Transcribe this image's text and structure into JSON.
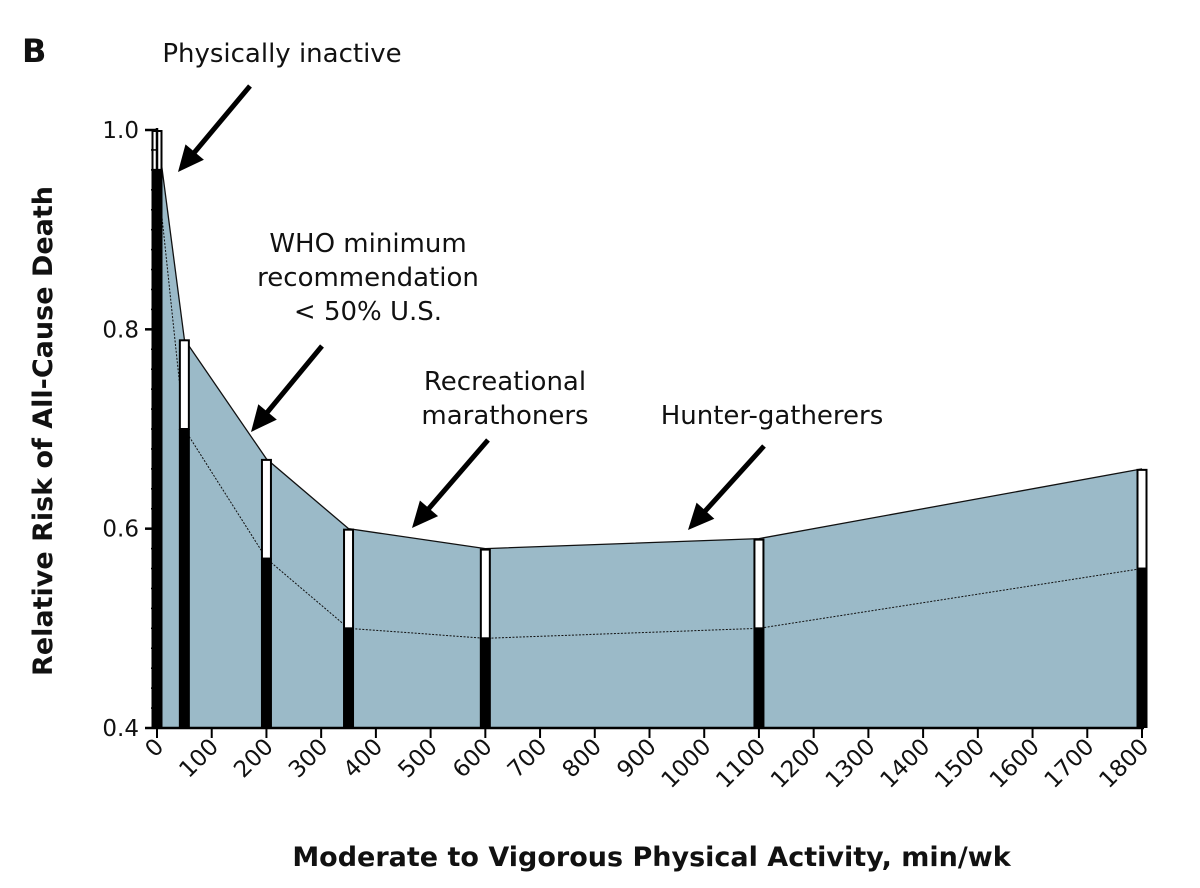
{
  "chart_data": {
    "type": "area",
    "panel_label": "B",
    "xlabel": "Moderate to Vigorous Physical Activity, min/wk",
    "ylabel": "Relative Risk of All-Cause Death",
    "xlim": [
      0,
      1800
    ],
    "ylim": [
      0.4,
      1.0
    ],
    "x_ticks": [
      0,
      100,
      200,
      300,
      400,
      500,
      600,
      700,
      800,
      900,
      1000,
      1100,
      1200,
      1300,
      1400,
      1500,
      1600,
      1700,
      1800
    ],
    "x_tick_labels": [
      "0",
      "100",
      "200",
      "300",
      "400",
      "500",
      "600",
      "700",
      "800",
      "900",
      "1000",
      "1100",
      "1200",
      "1300",
      "1400",
      "1500",
      "1600",
      "1700",
      "1800"
    ],
    "y_ticks": [
      0.4,
      0.6,
      0.8,
      1.0
    ],
    "y_tick_labels": [
      "0.4",
      "0.6",
      "0.8",
      "1.0"
    ],
    "grid": false,
    "band_color": "#9bbac8",
    "bar_color": "#000000",
    "x": [
      0,
      50,
      200,
      350,
      600,
      1100,
      1800
    ],
    "series": [
      {
        "name": "upper",
        "values": [
          1.0,
          0.79,
          0.67,
          0.6,
          0.58,
          0.59,
          0.66
        ]
      },
      {
        "name": "lower",
        "values": [
          0.96,
          0.7,
          0.57,
          0.5,
          0.49,
          0.5,
          0.56
        ]
      }
    ],
    "annotations": [
      {
        "lines": [
          "Physically inactive"
        ],
        "x": 40,
        "y": 0.96
      },
      {
        "lines": [
          "WHO minimum",
          "recommendation",
          "< 50% U.S."
        ],
        "x": 170,
        "y": 0.695
      },
      {
        "lines": [
          "Recreational",
          "marathoners"
        ],
        "x": 460,
        "y": 0.598
      },
      {
        "lines": [
          "Hunter-gatherers"
        ],
        "x": 970,
        "y": 0.597
      }
    ]
  }
}
